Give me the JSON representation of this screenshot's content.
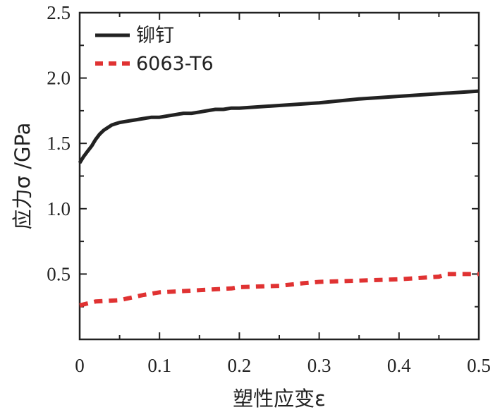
{
  "chart_data": {
    "type": "line",
    "xlabel": "塑性应变ε",
    "ylabel": "应力σ /GPa",
    "xlim": [
      0,
      0.5
    ],
    "ylim": [
      0,
      2.5
    ],
    "xticks": [
      0,
      0.1,
      0.2,
      0.3,
      0.4,
      0.5
    ],
    "xtick_labels": [
      "0",
      "0.1",
      "0.2",
      "0.3",
      "0.4",
      "0.5"
    ],
    "yticks": [
      0.5,
      1.0,
      1.5,
      2.0,
      2.5
    ],
    "ytick_labels": [
      "0.5",
      "1.0",
      "1.5",
      "2.0",
      "2.5"
    ],
    "grid": false,
    "legend_position": "top-left",
    "series": [
      {
        "name": "铆钉",
        "color": "#222222",
        "style": "solid",
        "x": [
          0,
          0.005,
          0.01,
          0.015,
          0.02,
          0.025,
          0.03,
          0.035,
          0.04,
          0.045,
          0.05,
          0.06,
          0.07,
          0.08,
          0.09,
          0.1,
          0.11,
          0.12,
          0.13,
          0.14,
          0.15,
          0.16,
          0.17,
          0.18,
          0.19,
          0.2,
          0.25,
          0.3,
          0.35,
          0.4,
          0.45,
          0.5
        ],
        "y": [
          1.35,
          1.4,
          1.44,
          1.48,
          1.53,
          1.57,
          1.6,
          1.62,
          1.64,
          1.65,
          1.66,
          1.67,
          1.68,
          1.69,
          1.7,
          1.7,
          1.71,
          1.72,
          1.73,
          1.73,
          1.74,
          1.75,
          1.76,
          1.76,
          1.77,
          1.77,
          1.79,
          1.81,
          1.84,
          1.86,
          1.88,
          1.9
        ]
      },
      {
        "name": "6063-T6",
        "color": "#e03232",
        "style": "dashed",
        "x": [
          0,
          0.02,
          0.05,
          0.08,
          0.1,
          0.13,
          0.16,
          0.19,
          0.2,
          0.25,
          0.28,
          0.3,
          0.35,
          0.4,
          0.45,
          0.46,
          0.5
        ],
        "y": [
          0.26,
          0.29,
          0.3,
          0.34,
          0.36,
          0.37,
          0.38,
          0.39,
          0.4,
          0.41,
          0.43,
          0.44,
          0.45,
          0.46,
          0.48,
          0.5,
          0.5
        ]
      }
    ]
  }
}
